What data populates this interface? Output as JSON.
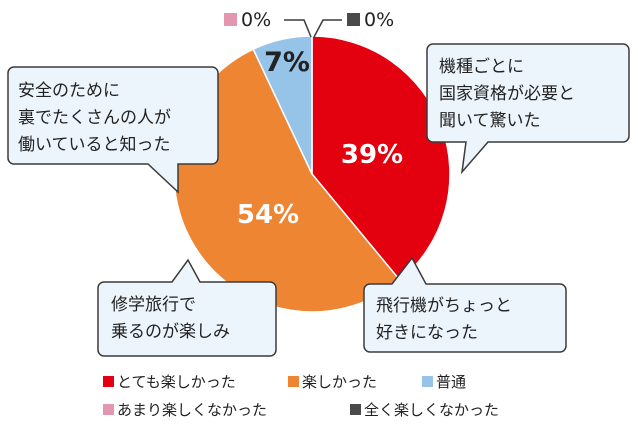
{
  "chart_data": {
    "type": "pie",
    "categories": [
      "とても楽しかった",
      "楽しかった",
      "普通",
      "あまり楽しくなかった",
      "全く楽しくなかった"
    ],
    "values": [
      39,
      54,
      7,
      0,
      0
    ],
    "value_labels": [
      "39%",
      "54%",
      "7%",
      "0%",
      "0%"
    ],
    "colors": [
      "#e3000f",
      "#ee8533",
      "#96c3e8",
      "#e396b0",
      "#4a4a4a"
    ],
    "legend_placement": "bottom"
  },
  "callouts": [
    {
      "lines": [
        "機種ごとに",
        "国家資格が必要と",
        "聞いて驚いた"
      ]
    },
    {
      "lines": [
        "安全のために",
        "裏でたくさんの人が",
        "働いていると知った"
      ]
    },
    {
      "lines": [
        "修学旅行で",
        "乗るのが楽しみ"
      ]
    },
    {
      "lines": [
        "飛行機がちょっと",
        "好きになった"
      ]
    }
  ],
  "colors": {
    "bubble_fill": "#edf5fc",
    "bubble_stroke": "#3b3b3b"
  }
}
